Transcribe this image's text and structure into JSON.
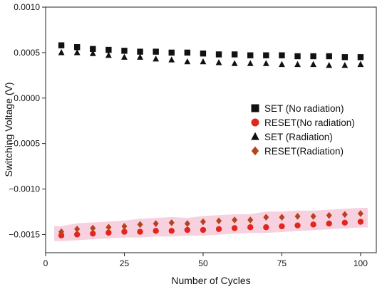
{
  "chart_data": {
    "type": "scatter",
    "xlabel": "Number of Cycles",
    "ylabel": "Switching Voltage (V)",
    "xlim": [
      0,
      105
    ],
    "ylim": [
      -0.0017,
      0.001
    ],
    "x_ticks": [
      0,
      25,
      50,
      75,
      100
    ],
    "x_tick_labels": [
      "0",
      "25",
      "50",
      "75",
      "100"
    ],
    "y_ticks": [
      0.001,
      0.0005,
      0.0,
      -0.0005,
      -0.001,
      -0.0015
    ],
    "y_tick_labels": [
      "0.0010",
      "0.0005",
      "0.0000",
      "−0.0005",
      "−0.0010",
      "−0.0015"
    ],
    "grid": false,
    "legend_position": "right",
    "x": [
      5,
      10,
      15,
      20,
      25,
      30,
      35,
      40,
      45,
      50,
      55,
      60,
      65,
      70,
      75,
      80,
      85,
      90,
      95,
      100
    ],
    "series": [
      {
        "name": "SET (No radiation)",
        "marker": "square",
        "color": "#111111",
        "values": [
          0.00058,
          0.00056,
          0.00054,
          0.00053,
          0.00052,
          0.00051,
          0.00051,
          0.0005,
          0.0005,
          0.00049,
          0.00048,
          0.00048,
          0.00047,
          0.00047,
          0.00047,
          0.00046,
          0.00046,
          0.00046,
          0.00045,
          0.00045
        ]
      },
      {
        "name": "RESET(No radiation)",
        "marker": "circle",
        "color": "#e3261c",
        "values": [
          -0.00151,
          -0.0015,
          -0.00149,
          -0.00148,
          -0.00147,
          -0.00147,
          -0.00146,
          -0.00146,
          -0.00145,
          -0.00145,
          -0.00144,
          -0.00143,
          -0.00142,
          -0.00142,
          -0.00141,
          -0.0014,
          -0.00139,
          -0.00138,
          -0.00137,
          -0.00136
        ]
      },
      {
        "name": "SET (Radiation)",
        "marker": "triangle",
        "color": "#111111",
        "values": [
          0.0005,
          0.0005,
          0.00049,
          0.00047,
          0.00045,
          0.00045,
          0.00043,
          0.00042,
          0.0004,
          0.0004,
          0.00039,
          0.00038,
          0.00038,
          0.00038,
          0.00037,
          0.00037,
          0.00037,
          0.00036,
          0.00036,
          0.00037
        ]
      },
      {
        "name": "RESET(Radiation)",
        "marker": "diamond",
        "color": "#b5431c",
        "values": [
          -0.00147,
          -0.00144,
          -0.00143,
          -0.00142,
          -0.00141,
          -0.00139,
          -0.00138,
          -0.00137,
          -0.00138,
          -0.00136,
          -0.00135,
          -0.00134,
          -0.00134,
          -0.00131,
          -0.00131,
          -0.0013,
          -0.0013,
          -0.00129,
          -0.00128,
          -0.00127
        ]
      }
    ],
    "colors": {
      "reset_band": "#f4c2d6"
    }
  }
}
